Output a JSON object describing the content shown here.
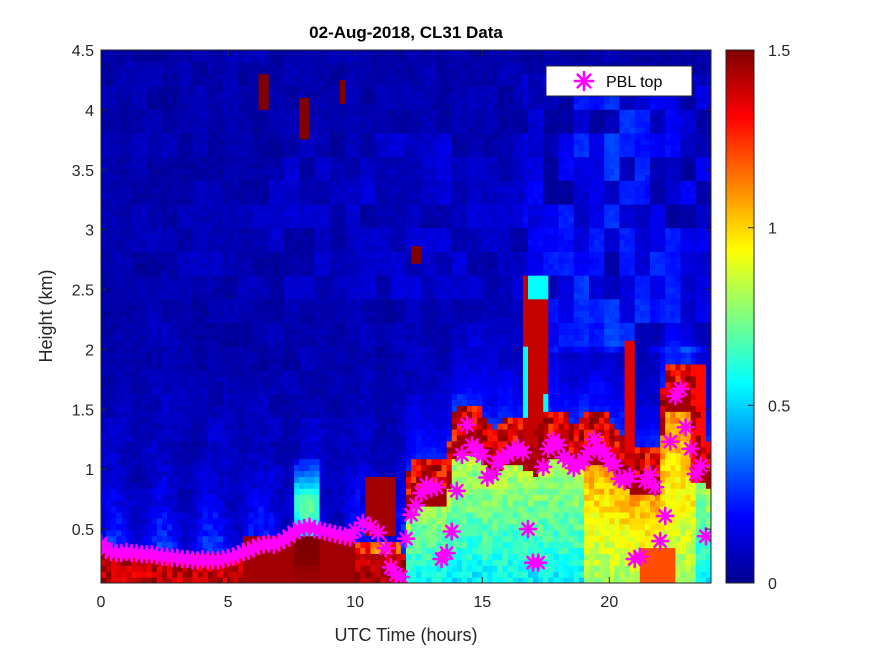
{
  "chart_data": {
    "type": "heatmap",
    "title": "02-Aug-2018, CL31 Data",
    "xlabel": "UTC Time (hours)",
    "ylabel": "Height (km)",
    "xlim": [
      0,
      24
    ],
    "ylim": [
      0.05,
      4.5
    ],
    "xticks": [
      0,
      5,
      10,
      15,
      20
    ],
    "yticks": [
      0.5,
      1,
      1.5,
      2,
      2.5,
      3,
      3.5,
      4,
      4.5
    ],
    "colorbar": {
      "min": 0,
      "max": 1.5,
      "ticks": [
        "0",
        "0.5",
        "1",
        "1.5"
      ],
      "colormap": "jet"
    },
    "legend": {
      "position": "top-right",
      "entries": [
        {
          "label": "PBL top",
          "marker": "asterisk",
          "color": "#ff00ff"
        }
      ]
    },
    "series": [
      {
        "name": "PBL top",
        "type": "scatter",
        "color": "#ff00ff",
        "x": [
          0,
          0.2,
          0.4,
          0.6,
          0.8,
          1.0,
          1.2,
          1.4,
          1.6,
          1.8,
          2.0,
          2.2,
          2.4,
          2.6,
          2.8,
          3.0,
          3.2,
          3.4,
          3.6,
          3.8,
          4.0,
          4.2,
          4.4,
          4.6,
          4.8,
          5.0,
          5.2,
          5.4,
          5.6,
          5.8,
          6.0,
          6.2,
          6.4,
          6.6,
          6.8,
          7.0,
          7.2,
          7.4,
          7.6,
          7.8,
          8.0,
          8.2,
          8.4,
          8.6,
          8.8,
          9.0,
          9.2,
          9.4,
          9.6,
          9.8,
          10.0,
          10.3,
          10.6,
          10.9,
          11.2,
          11.4,
          11.6,
          11.8,
          12.0,
          12.2,
          12.4,
          12.6,
          12.8,
          13.0,
          13.2,
          13.4,
          13.6,
          13.8,
          14.0,
          14.2,
          14.4,
          14.6,
          14.8,
          15.0,
          15.2,
          15.4,
          15.6,
          15.8,
          16.0,
          16.2,
          16.4,
          16.6,
          16.8,
          17.0,
          17.2,
          17.4,
          17.6,
          17.8,
          18.0,
          18.2,
          18.4,
          18.6,
          18.8,
          19.0,
          19.2,
          19.4,
          19.6,
          19.8,
          20.0,
          20.2,
          20.4,
          20.6,
          20.8,
          21.0,
          21.2,
          21.4,
          21.6,
          21.8,
          22.0,
          22.2,
          22.4,
          22.6,
          22.8,
          23.0,
          23.2,
          23.4,
          23.6,
          23.8
        ],
        "y": [
          0.38,
          0.33,
          0.31,
          0.3,
          0.3,
          0.31,
          0.3,
          0.3,
          0.29,
          0.29,
          0.29,
          0.28,
          0.27,
          0.27,
          0.26,
          0.26,
          0.25,
          0.25,
          0.24,
          0.24,
          0.25,
          0.24,
          0.24,
          0.24,
          0.25,
          0.26,
          0.27,
          0.29,
          0.31,
          0.32,
          0.34,
          0.36,
          0.37,
          0.38,
          0.37,
          0.39,
          0.41,
          0.44,
          0.47,
          0.5,
          0.51,
          0.52,
          0.5,
          0.49,
          0.48,
          0.47,
          0.46,
          0.45,
          0.44,
          0.43,
          0.49,
          0.55,
          0.52,
          0.47,
          0.34,
          0.18,
          0.12,
          0.1,
          0.42,
          0.62,
          0.7,
          0.8,
          0.87,
          0.84,
          0.85,
          0.25,
          0.3,
          0.48,
          0.82,
          1.12,
          1.37,
          1.2,
          1.16,
          1.11,
          0.93,
          0.96,
          1.05,
          1.1,
          1.12,
          1.15,
          1.18,
          1.14,
          0.5,
          0.22,
          0.22,
          1.02,
          1.17,
          1.24,
          1.2,
          1.1,
          1.07,
          1.01,
          1.04,
          1.08,
          1.15,
          1.25,
          1.17,
          1.13,
          1.07,
          1.03,
          0.92,
          0.9,
          0.94,
          0.25,
          0.27,
          0.9,
          0.95,
          0.85,
          0.4,
          0.61,
          1.23,
          1.61,
          1.67,
          1.35,
          1.17,
          0.96,
          1.03,
          0.44
        ]
      }
    ]
  }
}
